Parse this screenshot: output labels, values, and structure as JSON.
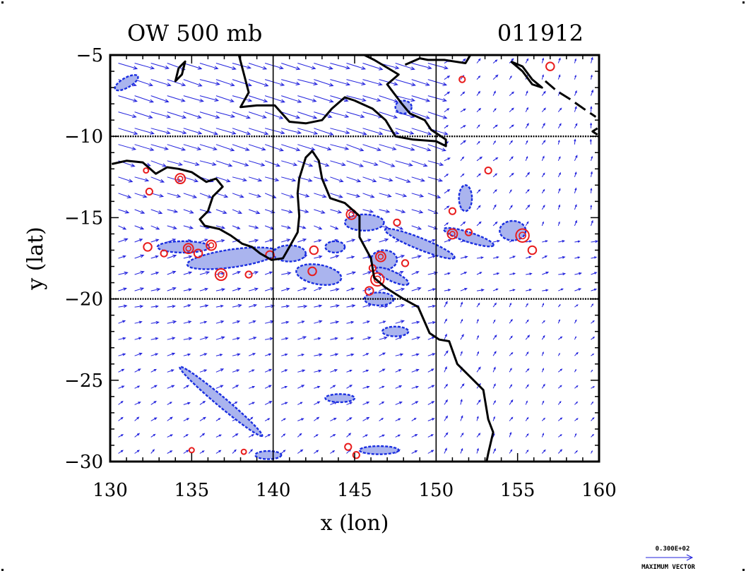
{
  "chart_data": {
    "type": "vector-contour-map",
    "title_left": "OW 500 mb",
    "title_right": "011912",
    "xlabel": "x (lon)",
    "ylabel": "y (lat)",
    "xlim": [
      130,
      160
    ],
    "ylim": [
      -30,
      -5
    ],
    "x_ticks": [
      {
        "value": 130,
        "label": "130"
      },
      {
        "value": 135,
        "label": "135"
      },
      {
        "value": 140,
        "label": "140"
      },
      {
        "value": 145,
        "label": "145"
      },
      {
        "value": 150,
        "label": "150"
      },
      {
        "value": 155,
        "label": "155"
      },
      {
        "value": 160,
        "label": "160"
      }
    ],
    "y_ticks": [
      {
        "value": -5,
        "label": "−5"
      },
      {
        "value": -10,
        "label": "−10"
      },
      {
        "value": -15,
        "label": "−15"
      },
      {
        "value": -20,
        "label": "−20"
      },
      {
        "value": -25,
        "label": "−25"
      },
      {
        "value": -30,
        "label": "−30"
      }
    ],
    "grid_lon": [
      140,
      150
    ],
    "grid_lat": [
      -10,
      -20
    ],
    "legend": {
      "value_label": "0.300E+02",
      "caption": "MAXIMUM VECTOR",
      "placement": "bottom-right"
    },
    "colors": {
      "coast": "#000000",
      "vectors": "#2222dd",
      "negative_contour": "#1a2ee0",
      "negative_fill": "#aab4ee",
      "positive_contour": "#e81c1c"
    },
    "coastlines": [
      {
        "name": "australia",
        "points": [
          [
            130.1,
            -11.7
          ],
          [
            131.0,
            -11.5
          ],
          [
            132.0,
            -11.6
          ],
          [
            132.8,
            -12.3
          ],
          [
            133.5,
            -11.9
          ],
          [
            134.2,
            -12.0
          ],
          [
            135.0,
            -12.2
          ],
          [
            135.9,
            -12.8
          ],
          [
            136.5,
            -12.6
          ],
          [
            136.9,
            -13.1
          ],
          [
            136.3,
            -13.7
          ],
          [
            136.0,
            -14.6
          ],
          [
            135.5,
            -15.1
          ],
          [
            135.8,
            -15.5
          ],
          [
            136.7,
            -15.7
          ],
          [
            137.4,
            -16.1
          ],
          [
            138.1,
            -16.6
          ],
          [
            138.7,
            -16.8
          ],
          [
            139.2,
            -17.2
          ],
          [
            139.9,
            -17.6
          ],
          [
            140.6,
            -17.5
          ],
          [
            141.0,
            -16.8
          ],
          [
            141.5,
            -15.9
          ],
          [
            141.6,
            -14.9
          ],
          [
            141.5,
            -13.5
          ],
          [
            141.6,
            -12.6
          ],
          [
            142.0,
            -11.3
          ],
          [
            142.4,
            -10.9
          ],
          [
            142.8,
            -11.5
          ],
          [
            143.0,
            -12.6
          ],
          [
            143.5,
            -13.8
          ],
          [
            144.4,
            -14.1
          ],
          [
            145.3,
            -14.9
          ],
          [
            145.3,
            -16.2
          ],
          [
            146.0,
            -17.5
          ],
          [
            146.2,
            -18.7
          ],
          [
            146.9,
            -19.3
          ],
          [
            148.0,
            -20.0
          ],
          [
            148.9,
            -20.5
          ],
          [
            149.6,
            -22.1
          ],
          [
            150.2,
            -22.5
          ],
          [
            150.8,
            -22.6
          ],
          [
            151.3,
            -24.0
          ],
          [
            152.1,
            -24.8
          ],
          [
            152.9,
            -25.6
          ],
          [
            153.2,
            -27.4
          ],
          [
            153.5,
            -28.2
          ],
          [
            153.2,
            -29.5
          ],
          [
            153.1,
            -30.0
          ]
        ]
      },
      {
        "name": "new-guinea-south",
        "points": [
          [
            137.9,
            -5.0
          ],
          [
            138.5,
            -7.3
          ],
          [
            138.0,
            -8.2
          ],
          [
            139.0,
            -8.1
          ],
          [
            140.1,
            -8.1
          ],
          [
            141.0,
            -9.1
          ],
          [
            142.0,
            -9.2
          ],
          [
            143.0,
            -9.0
          ],
          [
            143.6,
            -8.3
          ],
          [
            144.4,
            -7.6
          ],
          [
            145.0,
            -7.8
          ],
          [
            146.1,
            -8.3
          ],
          [
            146.9,
            -9.0
          ],
          [
            147.5,
            -10.0
          ],
          [
            148.6,
            -10.2
          ],
          [
            150.0,
            -10.3
          ],
          [
            150.6,
            -10.6
          ],
          [
            150.6,
            -10.2
          ],
          [
            149.7,
            -9.6
          ],
          [
            149.3,
            -9.0
          ],
          [
            148.4,
            -8.6
          ],
          [
            147.9,
            -8.0
          ],
          [
            147.0,
            -6.8
          ],
          [
            147.7,
            -6.2
          ],
          [
            146.2,
            -5.3
          ],
          [
            145.6,
            -5.0
          ]
        ]
      },
      {
        "name": "new-britain",
        "points": [
          [
            148.1,
            -5.6
          ],
          [
            149.0,
            -5.2
          ],
          [
            149.5,
            -5.3
          ],
          [
            150.5,
            -5.3
          ],
          [
            151.8,
            -5.5
          ],
          [
            152.1,
            -5.0
          ]
        ]
      },
      {
        "name": "bougainville",
        "points": [
          [
            154.6,
            -5.4
          ],
          [
            155.3,
            -6.0
          ],
          [
            155.9,
            -6.8
          ],
          [
            156.5,
            -7.0
          ],
          [
            155.9,
            -6.5
          ],
          [
            155.3,
            -5.7
          ],
          [
            154.6,
            -5.4
          ]
        ]
      },
      {
        "name": "small-island-west",
        "points": [
          [
            134.2,
            -5.8
          ],
          [
            134.6,
            -5.4
          ],
          [
            134.4,
            -6.2
          ],
          [
            134.0,
            -6.6
          ],
          [
            134.2,
            -5.8
          ]
        ]
      },
      {
        "name": "island-ne-edge",
        "points": [
          [
            159.9,
            -9.5
          ],
          [
            159.6,
            -9.7
          ],
          [
            159.9,
            -9.9
          ]
        ]
      }
    ],
    "dashed_coast": [
      [
        156.7,
        -6.6
      ],
      [
        157.4,
        -7.2
      ],
      [
        158.2,
        -7.7
      ],
      [
        159.2,
        -8.4
      ],
      [
        159.8,
        -8.8
      ]
    ],
    "negative_ow_regions": [
      {
        "cx": 137.5,
        "cy": -17.5,
        "rx": 2.8,
        "ry": 0.55,
        "rot": -8
      },
      {
        "cx": 141.0,
        "cy": -17.2,
        "rx": 1.0,
        "ry": 0.5,
        "rot": 0
      },
      {
        "cx": 142.8,
        "cy": -18.5,
        "rx": 1.4,
        "ry": 0.6,
        "rot": 10
      },
      {
        "cx": 145.6,
        "cy": -15.3,
        "rx": 1.2,
        "ry": 0.5,
        "rot": 0
      },
      {
        "cx": 146.8,
        "cy": -17.6,
        "rx": 0.8,
        "ry": 0.6,
        "rot": 0
      },
      {
        "cx": 149.0,
        "cy": -16.6,
        "rx": 2.3,
        "ry": 0.35,
        "rot": 22
      },
      {
        "cx": 152.0,
        "cy": -16.2,
        "rx": 1.6,
        "ry": 0.3,
        "rot": 18
      },
      {
        "cx": 151.8,
        "cy": -13.8,
        "rx": 0.4,
        "ry": 0.8,
        "rot": 0
      },
      {
        "cx": 154.7,
        "cy": -15.8,
        "rx": 0.8,
        "ry": 0.6,
        "rot": 0
      },
      {
        "cx": 136.8,
        "cy": -26.3,
        "rx": 3.3,
        "ry": 0.3,
        "rot": 40
      },
      {
        "cx": 144.1,
        "cy": -26.1,
        "rx": 0.9,
        "ry": 0.25,
        "rot": 0
      },
      {
        "cx": 146.5,
        "cy": -20.0,
        "rx": 0.9,
        "ry": 0.4,
        "rot": 0
      },
      {
        "cx": 147.5,
        "cy": -22.0,
        "rx": 0.8,
        "ry": 0.3,
        "rot": 0
      },
      {
        "cx": 131.0,
        "cy": -6.7,
        "rx": 0.8,
        "ry": 0.3,
        "rot": -30
      },
      {
        "cx": 134.5,
        "cy": -16.8,
        "rx": 1.6,
        "ry": 0.35,
        "rot": 0
      },
      {
        "cx": 139.7,
        "cy": -29.6,
        "rx": 0.8,
        "ry": 0.25,
        "rot": 0
      },
      {
        "cx": 146.5,
        "cy": -29.3,
        "rx": 1.2,
        "ry": 0.25,
        "rot": 0
      },
      {
        "cx": 148.0,
        "cy": -8.2,
        "rx": 0.5,
        "ry": 0.4,
        "rot": 0
      },
      {
        "cx": 143.8,
        "cy": -16.8,
        "rx": 0.6,
        "ry": 0.35,
        "rot": 0
      },
      {
        "cx": 147.3,
        "cy": -18.6,
        "rx": 1.1,
        "ry": 0.3,
        "rot": 25
      }
    ],
    "positive_ow_regions": [
      {
        "cx": 132.2,
        "cy": -12.1,
        "r": 0.15
      },
      {
        "cx": 132.4,
        "cy": -13.4,
        "r": 0.2
      },
      {
        "cx": 134.3,
        "cy": -12.6,
        "r": 0.3
      },
      {
        "cx": 132.3,
        "cy": -16.8,
        "r": 0.25
      },
      {
        "cx": 133.3,
        "cy": -17.2,
        "r": 0.2
      },
      {
        "cx": 134.8,
        "cy": -16.9,
        "r": 0.3
      },
      {
        "cx": 135.4,
        "cy": -17.2,
        "r": 0.25
      },
      {
        "cx": 136.2,
        "cy": -16.7,
        "r": 0.3
      },
      {
        "cx": 136.8,
        "cy": -18.5,
        "r": 0.35
      },
      {
        "cx": 138.5,
        "cy": -18.5,
        "r": 0.2
      },
      {
        "cx": 139.8,
        "cy": -17.3,
        "r": 0.25
      },
      {
        "cx": 142.5,
        "cy": -17.0,
        "r": 0.25
      },
      {
        "cx": 142.4,
        "cy": -18.3,
        "r": 0.25
      },
      {
        "cx": 144.8,
        "cy": -14.8,
        "r": 0.3
      },
      {
        "cx": 147.6,
        "cy": -15.3,
        "r": 0.2
      },
      {
        "cx": 146.4,
        "cy": -18.8,
        "r": 0.4
      },
      {
        "cx": 146.6,
        "cy": -17.4,
        "r": 0.3
      },
      {
        "cx": 145.9,
        "cy": -19.5,
        "r": 0.25
      },
      {
        "cx": 148.1,
        "cy": -17.8,
        "r": 0.2
      },
      {
        "cx": 151.0,
        "cy": -14.6,
        "r": 0.2
      },
      {
        "cx": 151.0,
        "cy": -16.0,
        "r": 0.3
      },
      {
        "cx": 152.0,
        "cy": -15.9,
        "r": 0.2
      },
      {
        "cx": 153.2,
        "cy": -12.1,
        "r": 0.2
      },
      {
        "cx": 155.3,
        "cy": -16.1,
        "r": 0.4
      },
      {
        "cx": 155.9,
        "cy": -17.0,
        "r": 0.25
      },
      {
        "cx": 157.0,
        "cy": -5.7,
        "r": 0.25
      },
      {
        "cx": 151.6,
        "cy": -6.5,
        "r": 0.18
      },
      {
        "cx": 144.6,
        "cy": -29.1,
        "r": 0.2
      },
      {
        "cx": 145.1,
        "cy": -29.6,
        "r": 0.2
      },
      {
        "cx": 138.2,
        "cy": -29.4,
        "r": 0.15
      },
      {
        "cx": 135.0,
        "cy": -29.3,
        "r": 0.15
      },
      {
        "cx": 146.1,
        "cy": -18.1,
        "r": 0.2
      }
    ]
  }
}
